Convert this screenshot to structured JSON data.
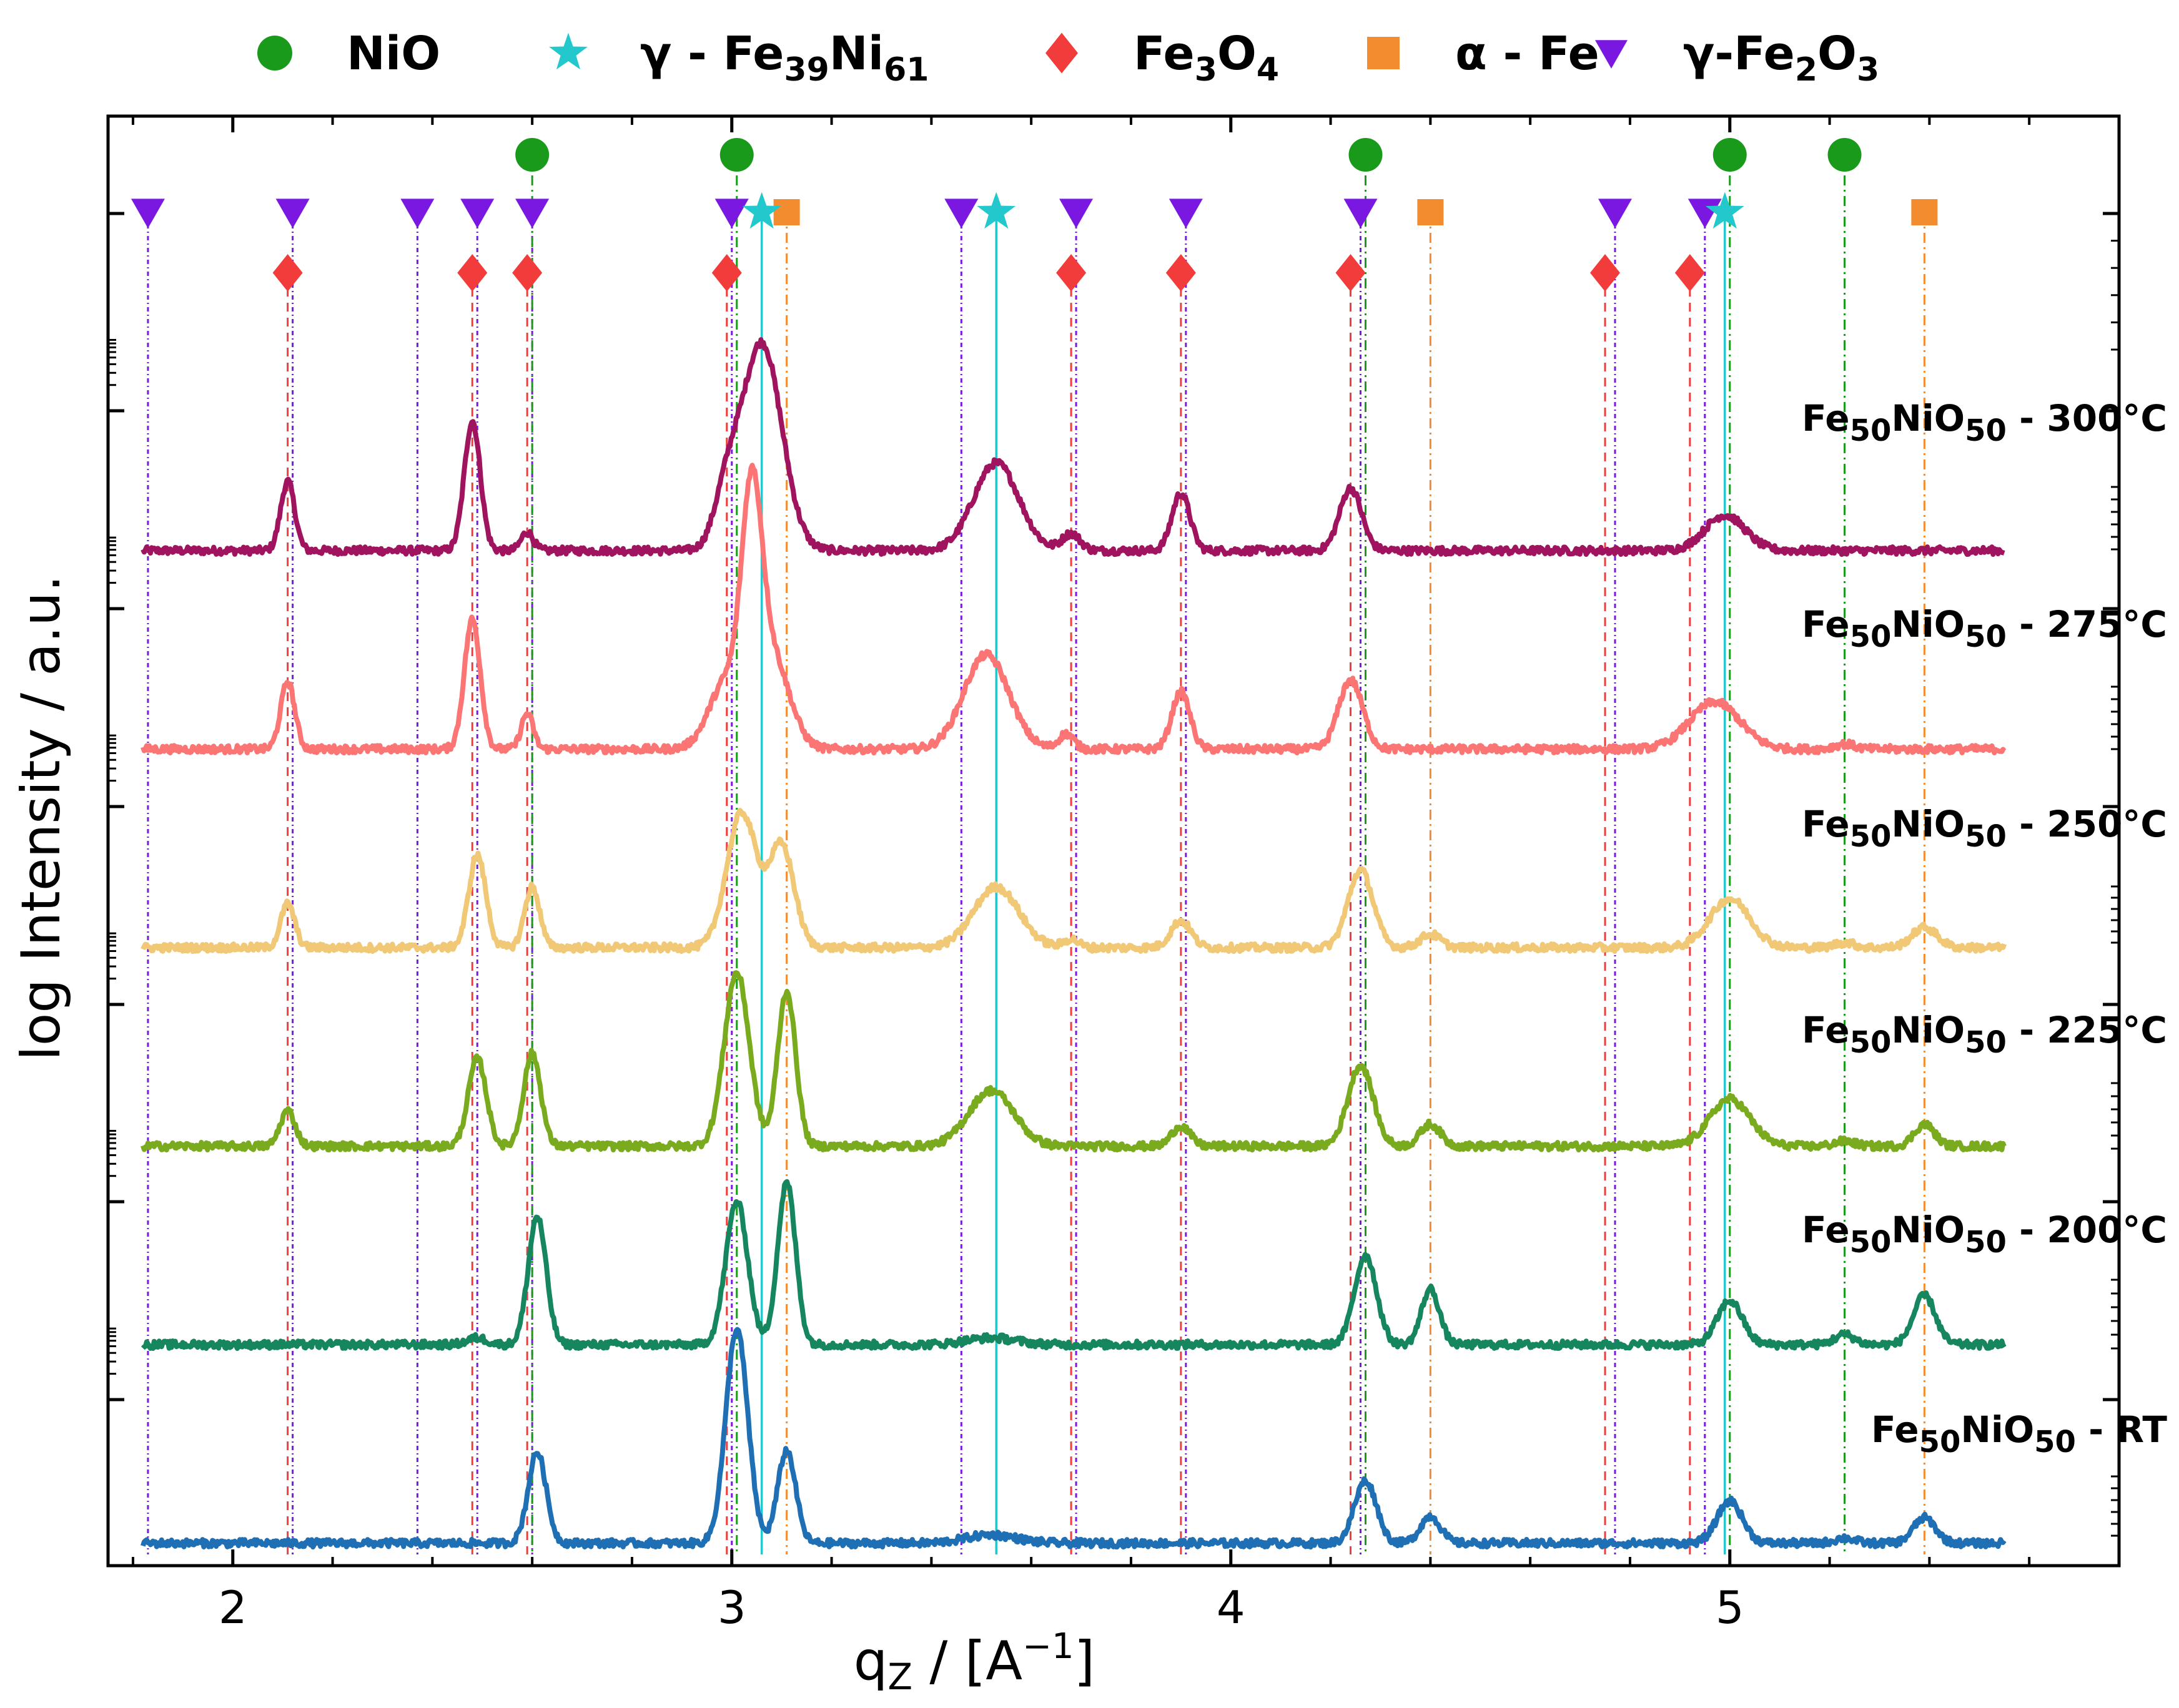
{
  "chart_data": {
    "type": "line",
    "title": "",
    "xlabel_parts": {
      "base": "q",
      "subscript": "Z",
      "rest": " / [A",
      "superscript": "−1",
      "close": "]"
    },
    "ylabel": "log Intensity / a.u.",
    "xlim": [
      1.75,
      5.78
    ],
    "xticks": [
      2,
      3,
      4,
      5
    ],
    "xtick_labels": [
      "2",
      "3",
      "4",
      "5"
    ],
    "yscale": "log (stacked, offset per sample)",
    "legend_position": "top",
    "legend": [
      {
        "key": "nio",
        "marker": "circle",
        "color": "#1a9a1a",
        "label_parts": [
          "NiO"
        ]
      },
      {
        "key": "fenI",
        "marker": "star",
        "color": "#22c8cc",
        "label_parts": [
          "γ - Fe",
          "39",
          "Ni",
          "61"
        ]
      },
      {
        "key": "fe3o4",
        "marker": "diamond",
        "color": "#f23c3c",
        "label_parts": [
          "Fe",
          "3",
          "O",
          "4"
        ]
      },
      {
        "key": "alfe",
        "marker": "square",
        "color": "#f28c2e",
        "label_parts": [
          "α - Fe"
        ]
      },
      {
        "key": "gfe2o3",
        "marker": "triangle-down",
        "color": "#7a17e0",
        "label_parts": [
          "γ-Fe",
          "2",
          "O",
          "3"
        ]
      }
    ],
    "reference_peaks": {
      "nio": [
        2.6,
        3.01,
        4.27,
        5.0,
        5.23
      ],
      "fenI": [
        3.06,
        3.53,
        4.99
      ],
      "fe3o4": [
        2.11,
        2.48,
        2.59,
        2.99,
        3.68,
        3.9,
        4.24,
        4.75,
        4.92
      ],
      "alfe": [
        3.11,
        4.4,
        5.39
      ],
      "gfe2o3": [
        1.83,
        2.12,
        2.37,
        2.49,
        2.6,
        3.0,
        3.46,
        3.69,
        3.91,
        4.26,
        4.77,
        4.95
      ]
    },
    "series": [
      {
        "name": "Fe50NiO50 - 300°C",
        "label_parts": [
          "Fe",
          "50",
          "NiO",
          "50",
          " - 300°C"
        ],
        "color": "#a0145f",
        "baseline": 0,
        "peaks": [
          [
            2.11,
            4.1,
            0.014
          ],
          [
            2.48,
            7.7,
            0.016
          ],
          [
            2.59,
            1.1,
            0.012
          ],
          [
            2.99,
            3.0,
            0.025
          ],
          [
            3.06,
            12.3,
            0.04
          ],
          [
            3.53,
            5.2,
            0.045
          ],
          [
            3.68,
            1.0,
            0.018
          ],
          [
            3.9,
            3.4,
            0.018
          ],
          [
            4.24,
            3.7,
            0.022
          ],
          [
            4.99,
            2.1,
            0.04
          ]
        ]
      },
      {
        "name": "Fe50NiO50 - 275°C",
        "label_parts": [
          "Fe",
          "50",
          "NiO",
          "50",
          " - 275°C"
        ],
        "color": "#fb7575",
        "baseline": 1,
        "peaks": [
          [
            2.11,
            4.0,
            0.014
          ],
          [
            2.48,
            7.7,
            0.016
          ],
          [
            2.59,
            2.1,
            0.012
          ],
          [
            2.99,
            4.0,
            0.035
          ],
          [
            3.04,
            12.4,
            0.02
          ],
          [
            3.08,
            5.5,
            0.035
          ],
          [
            3.51,
            5.6,
            0.045
          ],
          [
            3.67,
            0.9,
            0.015
          ],
          [
            3.9,
            3.4,
            0.018
          ],
          [
            4.24,
            4.1,
            0.024
          ],
          [
            4.97,
            2.8,
            0.05
          ],
          [
            5.23,
            0.3,
            0.02
          ]
        ]
      },
      {
        "name": "Fe50NiO50 - 250°C",
        "label_parts": [
          "Fe",
          "50",
          "NiO",
          "50",
          " - 250°C"
        ],
        "color": "#f0c876",
        "baseline": 2,
        "peaks": [
          [
            2.11,
            2.6,
            0.014
          ],
          [
            2.49,
            5.5,
            0.017
          ],
          [
            2.6,
            3.6,
            0.015
          ],
          [
            3.02,
            8.0,
            0.03
          ],
          [
            3.1,
            6.0,
            0.025
          ],
          [
            3.53,
            3.6,
            0.045
          ],
          [
            3.68,
            0.5,
            0.015
          ],
          [
            3.9,
            1.6,
            0.02
          ],
          [
            4.26,
            4.6,
            0.025
          ],
          [
            4.4,
            0.8,
            0.02
          ],
          [
            5.0,
            2.9,
            0.04
          ],
          [
            5.23,
            0.3,
            0.02
          ],
          [
            5.39,
            1.2,
            0.025
          ]
        ]
      },
      {
        "name": "Fe50NiO50 - 225°C",
        "label_parts": [
          "Fe",
          "50",
          "NiO",
          "50",
          " - 225°C"
        ],
        "color": "#7aaa1e",
        "baseline": 3,
        "peaks": [
          [
            2.11,
            2.1,
            0.015
          ],
          [
            2.49,
            5.2,
            0.018
          ],
          [
            2.6,
            5.5,
            0.017
          ],
          [
            3.01,
            10.3,
            0.025
          ],
          [
            3.11,
            9.2,
            0.018
          ],
          [
            3.52,
            3.3,
            0.045
          ],
          [
            3.9,
            1.2,
            0.018
          ],
          [
            4.26,
            4.8,
            0.025
          ],
          [
            4.4,
            1.3,
            0.02
          ],
          [
            5.0,
            2.8,
            0.04
          ],
          [
            5.23,
            0.3,
            0.02
          ],
          [
            5.39,
            1.3,
            0.02
          ]
        ]
      },
      {
        "name": "Fe50NiO50 - 200°C",
        "label_parts": [
          "Fe",
          "50",
          "NiO",
          "50",
          " - 200°C"
        ],
        "color": "#16865e",
        "baseline": 4,
        "peaks": [
          [
            2.49,
            0.4,
            0.02
          ],
          [
            2.61,
            7.6,
            0.018
          ],
          [
            3.01,
            8.5,
            0.022
          ],
          [
            3.11,
            9.6,
            0.018
          ],
          [
            3.52,
            0.4,
            0.05
          ],
          [
            4.27,
            5.3,
            0.022
          ],
          [
            4.4,
            3.3,
            0.018
          ],
          [
            5.0,
            2.6,
            0.025
          ],
          [
            5.23,
            0.6,
            0.02
          ],
          [
            5.39,
            2.9,
            0.022
          ]
        ]
      },
      {
        "name": "Fe50NiO50 - RT",
        "label_parts": [
          "Fe",
          "50",
          "NiO",
          "50",
          " - RT"
        ],
        "color": "#1f6fb5",
        "baseline": 5,
        "peaks": [
          [
            2.61,
            5.4,
            0.018
          ],
          [
            3.01,
            12.7,
            0.022
          ],
          [
            3.11,
            5.5,
            0.018
          ],
          [
            3.52,
            0.5,
            0.05
          ],
          [
            4.27,
            3.7,
            0.022
          ],
          [
            4.4,
            1.6,
            0.02
          ],
          [
            5.0,
            2.5,
            0.025
          ],
          [
            5.23,
            0.3,
            0.02
          ],
          [
            5.39,
            1.5,
            0.022
          ]
        ]
      }
    ]
  }
}
